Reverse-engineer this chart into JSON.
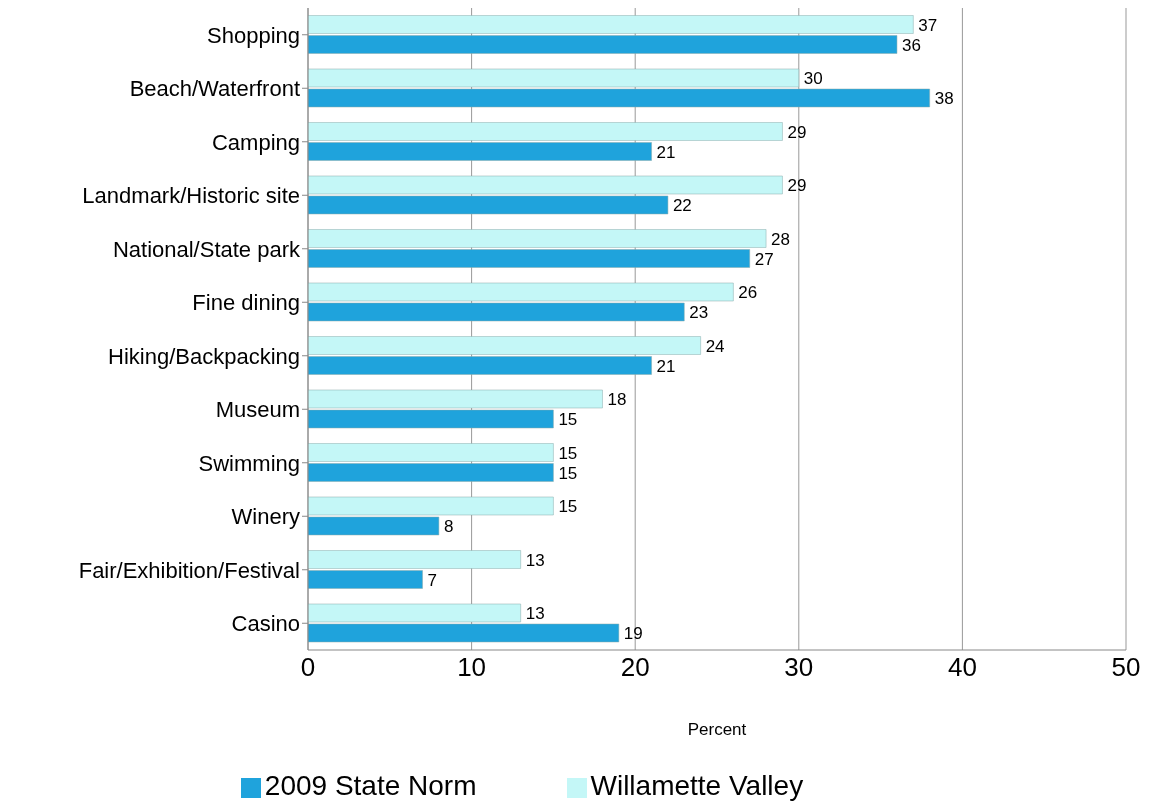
{
  "chart_data": {
    "type": "bar",
    "orientation": "horizontal",
    "xlabel": "Percent",
    "categories": [
      "Shopping",
      "Beach/Waterfront",
      "Camping",
      "Landmark/Historic site",
      "National/State park",
      "Fine dining",
      "Hiking/Backpacking",
      "Museum",
      "Swimming",
      "Winery",
      "Fair/Exhibition/Festival",
      "Casino"
    ],
    "series": [
      {
        "name": "Willamette Valley",
        "color": "#c4f7f7",
        "values": [
          37,
          30,
          29,
          29,
          28,
          26,
          24,
          18,
          15,
          15,
          13,
          13
        ]
      },
      {
        "name": "2009 State Norm",
        "color": "#1fa3dc",
        "values": [
          36,
          38,
          21,
          22,
          27,
          23,
          21,
          15,
          15,
          8,
          7,
          19
        ]
      }
    ],
    "xlim": [
      0,
      50
    ],
    "xticks": [
      0,
      10,
      20,
      30,
      40,
      50
    ],
    "grid": "x",
    "legend": "bottom",
    "data_labels": true
  }
}
